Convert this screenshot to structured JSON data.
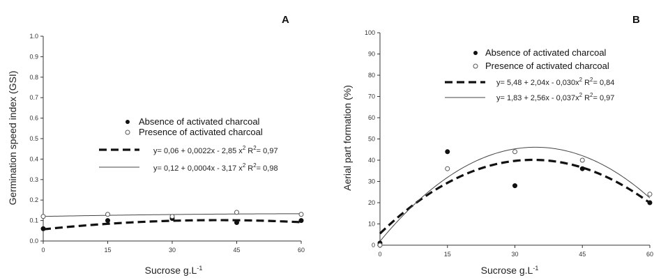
{
  "chart_data": [
    {
      "type": "scatter",
      "panel_label": "A",
      "xlabel_main": "Sucrose g.L",
      "xlabel_sup": "-1",
      "ylabel": "Germination speed index (GSI)",
      "xlim": [
        0,
        60
      ],
      "ylim": [
        0,
        1.0
      ],
      "x_ticks": [
        "0",
        "15",
        "30",
        "45",
        "60"
      ],
      "y_ticks": [
        "0.0",
        "0.1",
        "0.2",
        "0.3",
        "0.4",
        "0.5",
        "0.6",
        "0.7",
        "0.8",
        "0.9",
        "1.0"
      ],
      "x": [
        0,
        15,
        30,
        45,
        60
      ],
      "series": [
        {
          "name": "Absence of activated charcoal",
          "marker": "filled",
          "values": [
            0.06,
            0.1,
            0.11,
            0.09,
            0.1
          ],
          "fit": {
            "style": "dashed",
            "a": 0.057,
            "b": 0.0022,
            "c": -2.7e-05,
            "equation": "y= 0,06 + 0,0022x - 2,85 x",
            "eq_sup": "2",
            "r2": "R",
            "r2_sup": "2",
            "r2_value": "= 0,97"
          }
        },
        {
          "name": "Presence of activated charcoal",
          "marker": "open",
          "values": [
            0.12,
            0.13,
            0.12,
            0.14,
            0.13
          ],
          "fit": {
            "style": "solid",
            "a": 0.12,
            "b": 0.0004,
            "c": -3e-06,
            "equation": "y= 0,12 + 0,0004x - 3,17 x",
            "eq_sup": "2",
            "r2": "R",
            "r2_sup": "2",
            "r2_value": "= 0,98"
          }
        }
      ]
    },
    {
      "type": "scatter",
      "panel_label": "B",
      "xlabel_main": "Sucrose g.L",
      "xlabel_sup": "-1",
      "ylabel": "Aerial part formation (%)",
      "xlim": [
        0,
        60
      ],
      "ylim": [
        0,
        100
      ],
      "x_ticks": [
        "0",
        "15",
        "30",
        "45",
        "60"
      ],
      "y_ticks": [
        "0",
        "10",
        "20",
        "30",
        "40",
        "50",
        "60",
        "70",
        "80",
        "90",
        "100"
      ],
      "x": [
        0,
        15,
        30,
        45,
        60
      ],
      "series": [
        {
          "name": "Absence of activated charcoal",
          "marker": "filled",
          "values": [
            1,
            44,
            28,
            36,
            20
          ],
          "fit": {
            "style": "dashed",
            "a": 5.48,
            "b": 2.04,
            "c": -0.03,
            "equation": "y= 5,48 + 2,04x - 0,030x",
            "eq_sup": "2",
            "r2": "R",
            "r2_sup": "2",
            "r2_value": "= 0,84"
          }
        },
        {
          "name": "Presence of activated charcoal",
          "marker": "open",
          "values": [
            0,
            36,
            44,
            40,
            24
          ],
          "fit": {
            "style": "solid",
            "a": 1.83,
            "b": 2.56,
            "c": -0.037,
            "equation": "y= 1,83 + 2,56x - 0,037x",
            "eq_sup": "2",
            "r2": "R",
            "r2_sup": "2",
            "r2_value": "= 0,97"
          }
        }
      ]
    }
  ]
}
